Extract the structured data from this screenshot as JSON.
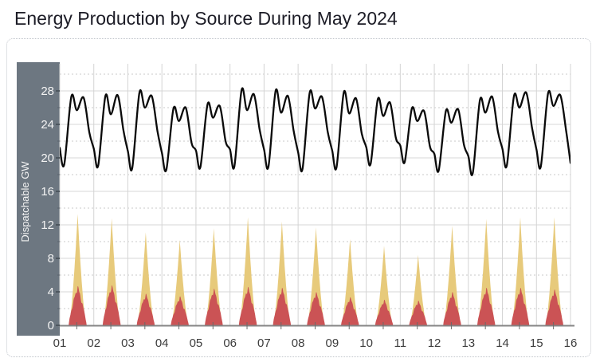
{
  "header": {
    "title": "Energy Production by Source During May 2024"
  },
  "chart_data": {
    "type": "area",
    "subtype": "stacked-daily-area-spikes-with-line-overlay",
    "title": "Energy Production by Source During May 2024",
    "xlabel": "",
    "ylabel": "Dispatchable GW",
    "x_tick_labels": [
      "01",
      "02",
      "03",
      "04",
      "05",
      "06",
      "07",
      "08",
      "09",
      "10",
      "11",
      "12",
      "13",
      "14",
      "15",
      "16"
    ],
    "y_major_ticks": [
      0,
      4,
      8,
      12,
      16,
      20,
      24,
      28
    ],
    "y_minor_ticks": [
      2,
      6,
      10,
      14,
      18,
      22,
      26,
      30
    ],
    "ylim": [
      0,
      31.2
    ],
    "xlim_days": [
      1,
      16
    ],
    "grid": {
      "vertical": "solid line per day",
      "horizontal_major": "solid",
      "horizontal_minor": "dashed"
    },
    "legend": "none visible",
    "colors": {
      "line": "#0a0a0a",
      "area_yellow": "#e7ca7b",
      "area_red": "#cb5355",
      "axis_panel": "#6d7781",
      "axis_panel_text": "#f4f4f4",
      "grid_major": "#d7d7d7",
      "grid_minor": "#c9c9c9",
      "grid_vertical": "#d4d4d4",
      "axis_line": "#858585",
      "tick": "#6a6a6a",
      "x_label_text": "#3d3d3d",
      "title_text": "#1c1c26",
      "card_border": "#c0c4cb"
    },
    "series": [
      {
        "name": "line_black",
        "type": "line",
        "unit": "GW",
        "description": "double-peaked daily curve (M shape): night minimum, morning peak, midday dip, evening peak",
        "start_value": 21.2,
        "end_value": 19.4,
        "daily_keypoints": [
          {
            "day": 1,
            "night_min": 19.2,
            "morning_peak": 27.3,
            "midday_dip": 25.7,
            "evening_peak": 27.2
          },
          {
            "day": 2,
            "night_min": 19.1,
            "morning_peak": 27.4,
            "midday_dip": 25.2,
            "evening_peak": 27.5
          },
          {
            "day": 3,
            "night_min": 18.8,
            "morning_peak": 27.8,
            "midday_dip": 26.0,
            "evening_peak": 27.4
          },
          {
            "day": 4,
            "night_min": 18.6,
            "morning_peak": 25.9,
            "midday_dip": 24.4,
            "evening_peak": 26.0
          },
          {
            "day": 5,
            "night_min": 18.9,
            "morning_peak": 26.4,
            "midday_dip": 24.8,
            "evening_peak": 26.2
          },
          {
            "day": 6,
            "night_min": 19.0,
            "morning_peak": 28.1,
            "midday_dip": 25.7,
            "evening_peak": 27.6
          },
          {
            "day": 7,
            "night_min": 19.0,
            "morning_peak": 28.0,
            "midday_dip": 25.4,
            "evening_peak": 27.4
          },
          {
            "day": 8,
            "night_min": 18.7,
            "morning_peak": 27.8,
            "midday_dip": 25.9,
            "evening_peak": 27.3
          },
          {
            "day": 9,
            "night_min": 18.9,
            "morning_peak": 27.8,
            "midday_dip": 25.3,
            "evening_peak": 27.1
          },
          {
            "day": 10,
            "night_min": 19.3,
            "morning_peak": 27.0,
            "midday_dip": 25.0,
            "evening_peak": 26.6
          },
          {
            "day": 11,
            "night_min": 19.5,
            "morning_peak": 25.9,
            "midday_dip": 24.4,
            "evening_peak": 25.6
          },
          {
            "day": 12,
            "night_min": 18.5,
            "morning_peak": 25.6,
            "midday_dip": 24.2,
            "evening_peak": 25.8
          },
          {
            "day": 13,
            "night_min": 18.2,
            "morning_peak": 26.9,
            "midday_dip": 25.4,
            "evening_peak": 27.3
          },
          {
            "day": 14,
            "night_min": 19.1,
            "morning_peak": 27.4,
            "midday_dip": 26.0,
            "evening_peak": 27.8
          },
          {
            "day": 15,
            "night_min": 19.0,
            "morning_peak": 27.7,
            "midday_dip": 26.2,
            "evening_peak": 27.5
          },
          {
            "day": 16,
            "night_min": 19.4,
            "morning_peak": null,
            "midday_dip": null,
            "evening_peak": null
          }
        ]
      },
      {
        "name": "area_yellow_top",
        "type": "area-stacked-total",
        "unit": "GW",
        "daylight_start_hour": 6.2,
        "daylight_end_hour": 19.0,
        "peak_hour": 12.6,
        "daily_peak_total_gw": [
          13.3,
          12.8,
          11.1,
          10.2,
          11.6,
          12.9,
          12.4,
          11.7,
          10.3,
          9.5,
          8.4,
          11.9,
          12.7,
          12.9,
          12.9
        ]
      },
      {
        "name": "area_red_bottom",
        "type": "area-stacked-bottom",
        "unit": "GW",
        "daily_peak_gw": [
          4.6,
          4.7,
          3.7,
          3.4,
          4.3,
          4.5,
          4.4,
          3.9,
          3.3,
          3.0,
          2.9,
          3.9,
          4.4,
          4.4,
          4.2
        ]
      }
    ]
  }
}
